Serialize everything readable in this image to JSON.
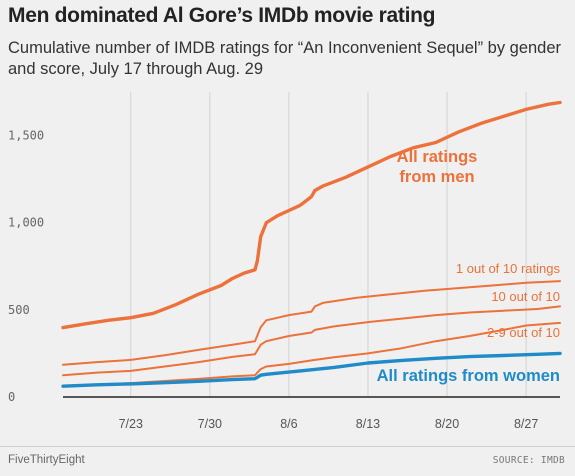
{
  "header": {
    "title": "Men dominated Al Gore’s IMDb movie rating",
    "subtitle": "Cumulative number of IMDB ratings for “An Inconvenient Sequel” by gender and score, July 17 through Aug. 29"
  },
  "footer": {
    "brand": "FiveThirtyEight",
    "source": "SOURCE: IMDB"
  },
  "chart_data": {
    "type": "line",
    "title": "Men dominated Al Gore’s IMDb movie rating",
    "subtitle": "Cumulative number of IMDB ratings for “An Inconvenient Sequel” by gender and score, July 17 through Aug. 29",
    "xlabel": "",
    "ylabel": "",
    "x_range": [
      "7/17",
      "8/29"
    ],
    "ylim": [
      0,
      1750
    ],
    "x_ticks": [
      {
        "day": 6,
        "label": "7/23"
      },
      {
        "day": 13,
        "label": "7/30"
      },
      {
        "day": 20,
        "label": "8/6"
      },
      {
        "day": 27,
        "label": "8/13"
      },
      {
        "day": 34,
        "label": "8/20"
      },
      {
        "day": 41,
        "label": "8/27"
      }
    ],
    "y_ticks": [
      {
        "value": 0,
        "label": "0"
      },
      {
        "value": 500,
        "label": "500"
      },
      {
        "value": 1000,
        "label": "1,000"
      },
      {
        "value": 1500,
        "label": "1,500"
      }
    ],
    "grid": {
      "vertical": true,
      "horizontal": false
    },
    "series": [
      {
        "name": "All ratings from men",
        "color": "#ed713a",
        "emphasis": true,
        "points": [
          [
            0,
            398
          ],
          [
            2,
            420
          ],
          [
            4,
            440
          ],
          [
            6,
            455
          ],
          [
            8,
            480
          ],
          [
            10,
            530
          ],
          [
            12,
            590
          ],
          [
            14,
            640
          ],
          [
            15,
            680
          ],
          [
            16,
            710
          ],
          [
            17,
            730
          ],
          [
            17.2,
            780
          ],
          [
            17.5,
            920
          ],
          [
            18,
            1000
          ],
          [
            19,
            1040
          ],
          [
            20,
            1070
          ],
          [
            21,
            1100
          ],
          [
            22,
            1150
          ],
          [
            22.3,
            1185
          ],
          [
            23,
            1210
          ],
          [
            25,
            1260
          ],
          [
            27,
            1320
          ],
          [
            29,
            1380
          ],
          [
            31,
            1430
          ],
          [
            33,
            1460
          ],
          [
            35,
            1520
          ],
          [
            37,
            1570
          ],
          [
            39,
            1610
          ],
          [
            41,
            1650
          ],
          [
            43,
            1680
          ],
          [
            44,
            1690
          ]
        ]
      },
      {
        "name": "1 out of 10 ratings",
        "color": "#ed713a",
        "emphasis": false,
        "points": [
          [
            0,
            185
          ],
          [
            3,
            200
          ],
          [
            6,
            213
          ],
          [
            9,
            240
          ],
          [
            12,
            270
          ],
          [
            15,
            300
          ],
          [
            17,
            320
          ],
          [
            17.5,
            400
          ],
          [
            18,
            440
          ],
          [
            20,
            470
          ],
          [
            22,
            490
          ],
          [
            22.3,
            520
          ],
          [
            23,
            540
          ],
          [
            26,
            570
          ],
          [
            29,
            590
          ],
          [
            32,
            610
          ],
          [
            35,
            625
          ],
          [
            38,
            640
          ],
          [
            41,
            655
          ],
          [
            44,
            665
          ]
        ]
      },
      {
        "name": "10 out of 10",
        "color": "#ed713a",
        "emphasis": false,
        "points": [
          [
            0,
            125
          ],
          [
            3,
            140
          ],
          [
            6,
            150
          ],
          [
            9,
            175
          ],
          [
            12,
            200
          ],
          [
            15,
            230
          ],
          [
            17,
            245
          ],
          [
            17.5,
            300
          ],
          [
            18,
            320
          ],
          [
            20,
            350
          ],
          [
            22,
            370
          ],
          [
            22.3,
            385
          ],
          [
            24,
            405
          ],
          [
            27,
            430
          ],
          [
            30,
            450
          ],
          [
            33,
            470
          ],
          [
            36,
            485
          ],
          [
            39,
            495
          ],
          [
            42,
            505
          ],
          [
            44,
            520
          ]
        ]
      },
      {
        "name": "2-9 out of 10",
        "color": "#ed713a",
        "emphasis": false,
        "points": [
          [
            0,
            65
          ],
          [
            3,
            72
          ],
          [
            6,
            80
          ],
          [
            9,
            92
          ],
          [
            12,
            104
          ],
          [
            15,
            118
          ],
          [
            17,
            125
          ],
          [
            17.5,
            160
          ],
          [
            18,
            175
          ],
          [
            20,
            190
          ],
          [
            22,
            210
          ],
          [
            24,
            228
          ],
          [
            27,
            250
          ],
          [
            30,
            280
          ],
          [
            33,
            320
          ],
          [
            36,
            350
          ],
          [
            39,
            385
          ],
          [
            41,
            410
          ],
          [
            44,
            425
          ]
        ]
      },
      {
        "name": "All ratings from women",
        "color": "#1f8bc9",
        "emphasis": true,
        "points": [
          [
            0,
            62
          ],
          [
            3,
            70
          ],
          [
            6,
            75
          ],
          [
            9,
            82
          ],
          [
            12,
            90
          ],
          [
            15,
            100
          ],
          [
            17,
            105
          ],
          [
            17.5,
            125
          ],
          [
            18,
            130
          ],
          [
            21,
            150
          ],
          [
            24,
            170
          ],
          [
            27,
            195
          ],
          [
            30,
            210
          ],
          [
            33,
            222
          ],
          [
            36,
            232
          ],
          [
            39,
            238
          ],
          [
            42,
            245
          ],
          [
            44,
            250
          ]
        ]
      }
    ],
    "annotations": [
      {
        "series": "All ratings from men",
        "lines": [
          "All ratings",
          "from men"
        ]
      },
      {
        "series": "1 out of 10 ratings",
        "lines": [
          "1 out of 10 ratings"
        ]
      },
      {
        "series": "10 out of 10",
        "lines": [
          "10 out of 10"
        ]
      },
      {
        "series": "2-9 out of 10",
        "lines": [
          "2-9 out of 10"
        ]
      },
      {
        "series": "All ratings from women",
        "lines": [
          "All ratings from women"
        ]
      }
    ]
  }
}
